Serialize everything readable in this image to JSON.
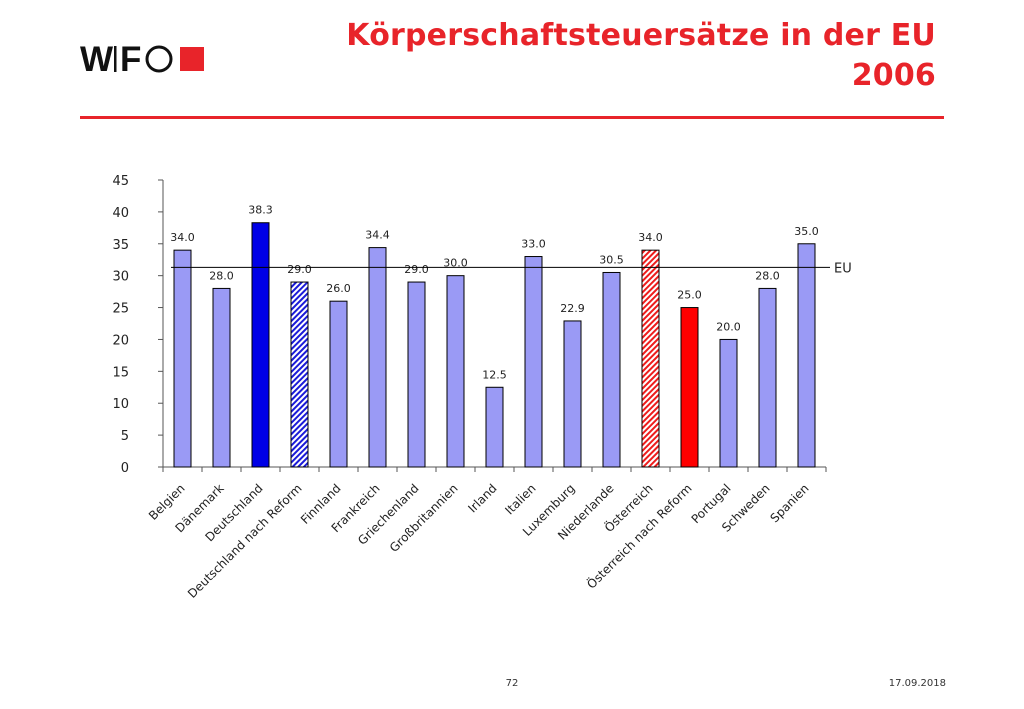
{
  "header": {
    "logo": {
      "text": "WIFO",
      "icon": "wifo-logo"
    },
    "title_line1": "Körperschaftsteuersätze in der EU",
    "title_line2": "2006"
  },
  "colors": {
    "accent": "#e8242a",
    "bar_default": "#9a9af5",
    "bar_highlight_blue": "#0000e6",
    "bar_highlight_red": "#ff0000",
    "bar_outline": "#000000"
  },
  "chart_data": {
    "type": "bar",
    "title": "",
    "xlabel": "",
    "ylabel": "",
    "ylim": [
      0,
      45
    ],
    "yticks": [
      0,
      5,
      10,
      15,
      20,
      25,
      30,
      35,
      40,
      45
    ],
    "grid": false,
    "categories": [
      "Belgien",
      "Dänemark",
      "Deutschland",
      "Deutschland nach Reform",
      "Finnland",
      "Frankreich",
      "Griechenland",
      "Großbritannien",
      "Irland",
      "Italien",
      "Luxemburg",
      "Niederlande",
      "Österreich",
      "Österreich nach Reform",
      "Portugal",
      "Schweden",
      "Spanien"
    ],
    "values": [
      34.0,
      28.0,
      38.3,
      29.0,
      26.0,
      34.4,
      29.0,
      30.0,
      12.5,
      33.0,
      22.9,
      30.5,
      34.0,
      25.0,
      20.0,
      28.0,
      35.0
    ],
    "value_labels": [
      "34.0",
      "28.0",
      "38.3",
      "29.0",
      "26.0",
      "34.4",
      "29.0",
      "30.0",
      "12.5",
      "33.0",
      "22.9",
      "30.5",
      "34.0",
      "25.0",
      "20.0",
      "28.0",
      "35.0"
    ],
    "bar_styles": [
      "plain",
      "plain",
      "solid-blue",
      "hatched-blue",
      "plain",
      "plain",
      "plain",
      "plain",
      "plain",
      "plain",
      "plain",
      "plain",
      "hatched-red",
      "solid-red",
      "plain",
      "plain",
      "plain"
    ],
    "reference_line": {
      "label": "EU",
      "value": 31.3
    }
  },
  "footer": {
    "page_number": "72",
    "date": "17.09.2018"
  }
}
